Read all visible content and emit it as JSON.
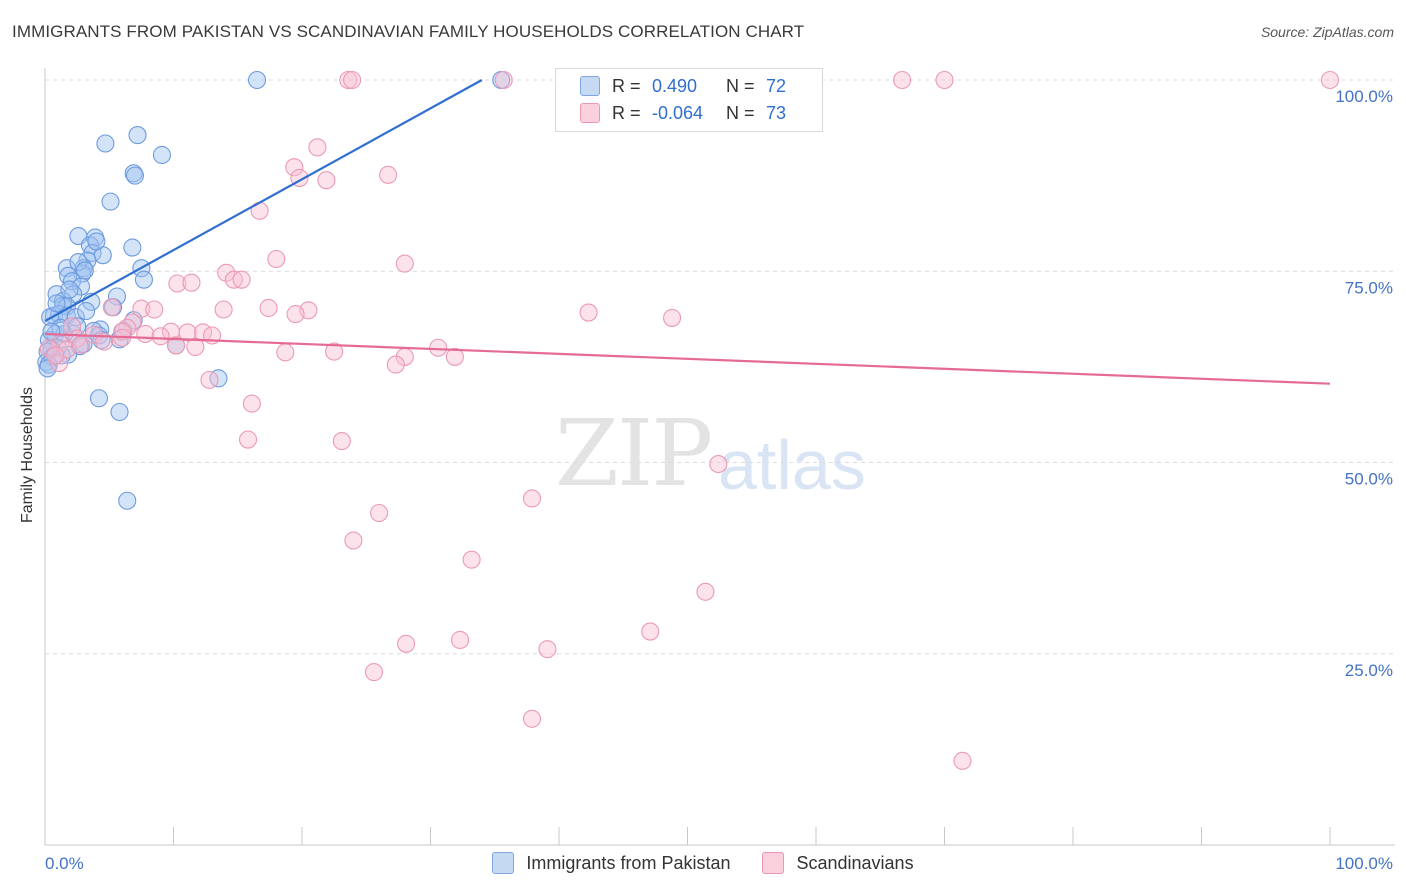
{
  "title": "IMMIGRANTS FROM PAKISTAN VS SCANDINAVIAN FAMILY HOUSEHOLDS CORRELATION CHART",
  "source": "Source: ZipAtlas.com",
  "watermark": {
    "part1": "ZIP",
    "part2": "atlas"
  },
  "legend": {
    "rows": [
      {
        "r_label": "R =",
        "r_value": "0.490",
        "n_label": "N =",
        "n_value": "72"
      },
      {
        "r_label": "R =",
        "r_value": "-0.064",
        "n_label": "N =",
        "n_value": "73"
      }
    ]
  },
  "bottom_legend": {
    "series1": "Immigrants from Pakistan",
    "series2": "Scandinavians"
  },
  "colors": {
    "blue": "#5b8fd9",
    "blue_line": "#2f6fd0",
    "pink": "#eb8fae",
    "pink_line": "#e56b94",
    "tick": "#4472c4"
  },
  "chart_data": {
    "type": "scatter",
    "title": "IMMIGRANTS FROM PAKISTAN VS SCANDINAVIAN FAMILY HOUSEHOLDS CORRELATION CHART",
    "xlabel": "",
    "ylabel": "Family Households",
    "xlim": [
      0,
      100
    ],
    "ylim": [
      0,
      102
    ],
    "x_tick_labels": [
      "0.0%",
      "100.0%"
    ],
    "y_ticks": [
      25,
      50,
      75,
      100
    ],
    "y_tick_labels": [
      "25.0%",
      "50.0%",
      "75.0%",
      "100.0%"
    ],
    "grid": true,
    "series": [
      {
        "name": "Immigrants from Pakistan",
        "color": "#5b8fd9",
        "r": 0.49,
        "n": 72,
        "trend": {
          "x1": 0,
          "y1": 68.5,
          "x2": 34,
          "y2": 100
        },
        "points": [
          [
            16.5,
            100.0
          ],
          [
            35.5,
            100.0
          ],
          [
            7.2,
            92.8
          ],
          [
            4.7,
            91.7
          ],
          [
            9.1,
            90.2
          ],
          [
            6.9,
            87.8
          ],
          [
            7.0,
            87.5
          ],
          [
            5.1,
            84.1
          ],
          [
            2.6,
            79.6
          ],
          [
            3.9,
            79.4
          ],
          [
            3.5,
            78.4
          ],
          [
            6.8,
            78.1
          ],
          [
            3.7,
            77.4
          ],
          [
            4.5,
            77.1
          ],
          [
            3.3,
            76.4
          ],
          [
            3.0,
            75.4
          ],
          [
            1.7,
            75.4
          ],
          [
            7.5,
            75.4
          ],
          [
            2.9,
            74.7
          ],
          [
            1.8,
            74.4
          ],
          [
            2.1,
            73.7
          ],
          [
            7.7,
            73.9
          ],
          [
            2.8,
            73.0
          ],
          [
            2.2,
            72.0
          ],
          [
            0.9,
            72.0
          ],
          [
            5.6,
            71.7
          ],
          [
            3.6,
            71.0
          ],
          [
            1.4,
            71.1
          ],
          [
            1.4,
            70.5
          ],
          [
            1.7,
            70.4
          ],
          [
            5.3,
            70.3
          ],
          [
            0.7,
            69.2
          ],
          [
            1.1,
            69.4
          ],
          [
            1.7,
            69.2
          ],
          [
            2.4,
            69.0
          ],
          [
            0.4,
            69.0
          ],
          [
            6.9,
            68.6
          ],
          [
            4.3,
            67.4
          ],
          [
            3.8,
            67.2
          ],
          [
            6.1,
            67.2
          ],
          [
            2.2,
            66.8
          ],
          [
            0.8,
            66.8
          ],
          [
            1.5,
            66.8
          ],
          [
            4.2,
            66.6
          ],
          [
            5.8,
            66.1
          ],
          [
            0.3,
            66.0
          ],
          [
            4.4,
            66.0
          ],
          [
            3.0,
            65.5
          ],
          [
            2.7,
            65.2
          ],
          [
            10.2,
            65.3
          ],
          [
            1.0,
            65.0
          ],
          [
            0.5,
            64.8
          ],
          [
            0.2,
            64.5
          ],
          [
            1.8,
            64.1
          ],
          [
            0.6,
            63.8
          ],
          [
            0.1,
            63.1
          ],
          [
            0.3,
            62.8
          ],
          [
            0.2,
            62.3
          ],
          [
            13.5,
            61.0
          ],
          [
            4.2,
            58.4
          ],
          [
            5.8,
            56.6
          ],
          [
            6.4,
            45.0
          ],
          [
            1.2,
            67.6
          ],
          [
            2.5,
            67.8
          ],
          [
            3.2,
            69.8
          ],
          [
            0.9,
            70.8
          ],
          [
            1.9,
            72.6
          ],
          [
            2.6,
            76.2
          ],
          [
            3.1,
            75.1
          ],
          [
            4.0,
            78.9
          ],
          [
            0.5,
            67.1
          ],
          [
            1.3,
            64.0
          ]
        ]
      },
      {
        "name": "Scandinavians",
        "color": "#eb8fae",
        "r": -0.064,
        "n": 73,
        "trend": {
          "x1": 0,
          "y1": 66.8,
          "x2": 100,
          "y2": 60.3
        },
        "points": [
          [
            23.6,
            100.0
          ],
          [
            23.9,
            100.0
          ],
          [
            35.7,
            100.0
          ],
          [
            66.7,
            100.0
          ],
          [
            70.0,
            100.0
          ],
          [
            100.0,
            100.0
          ],
          [
            21.2,
            91.2
          ],
          [
            19.4,
            88.6
          ],
          [
            26.7,
            87.6
          ],
          [
            19.8,
            87.2
          ],
          [
            21.9,
            86.9
          ],
          [
            16.7,
            82.9
          ],
          [
            18.0,
            76.6
          ],
          [
            28.0,
            76.0
          ],
          [
            14.1,
            74.8
          ],
          [
            14.7,
            73.9
          ],
          [
            15.3,
            73.9
          ],
          [
            10.3,
            73.4
          ],
          [
            11.4,
            73.5
          ],
          [
            17.4,
            70.2
          ],
          [
            20.5,
            69.9
          ],
          [
            19.5,
            69.4
          ],
          [
            7.5,
            70.1
          ],
          [
            8.5,
            70.0
          ],
          [
            13.9,
            70.0
          ],
          [
            5.2,
            70.3
          ],
          [
            42.3,
            69.6
          ],
          [
            48.8,
            68.9
          ],
          [
            6.8,
            68.3
          ],
          [
            2.1,
            67.8
          ],
          [
            6.4,
            67.6
          ],
          [
            9.8,
            67.1
          ],
          [
            11.1,
            67.0
          ],
          [
            12.3,
            67.0
          ],
          [
            6.0,
            67.1
          ],
          [
            7.8,
            66.8
          ],
          [
            13.0,
            66.6
          ],
          [
            3.8,
            66.7
          ],
          [
            2.5,
            66.2
          ],
          [
            6.0,
            66.3
          ],
          [
            1.2,
            65.6
          ],
          [
            0.3,
            64.9
          ],
          [
            1.7,
            64.8
          ],
          [
            10.2,
            65.3
          ],
          [
            11.7,
            65.1
          ],
          [
            30.6,
            65.0
          ],
          [
            18.7,
            64.4
          ],
          [
            22.5,
            64.5
          ],
          [
            31.9,
            63.8
          ],
          [
            28.0,
            63.8
          ],
          [
            27.3,
            62.8
          ],
          [
            1.1,
            63.0
          ],
          [
            12.8,
            60.8
          ],
          [
            16.1,
            57.7
          ],
          [
            15.8,
            53.0
          ],
          [
            23.1,
            52.8
          ],
          [
            52.4,
            49.8
          ],
          [
            37.9,
            45.3
          ],
          [
            26.0,
            43.4
          ],
          [
            24.0,
            39.8
          ],
          [
            33.2,
            37.3
          ],
          [
            51.4,
            33.1
          ],
          [
            47.1,
            27.9
          ],
          [
            32.3,
            26.8
          ],
          [
            28.1,
            26.3
          ],
          [
            39.1,
            25.6
          ],
          [
            25.6,
            22.6
          ],
          [
            37.9,
            16.5
          ],
          [
            71.4,
            11.0
          ],
          [
            2.8,
            65.4
          ],
          [
            0.8,
            64.0
          ],
          [
            4.6,
            65.8
          ],
          [
            9.0,
            66.5
          ]
        ]
      }
    ]
  }
}
